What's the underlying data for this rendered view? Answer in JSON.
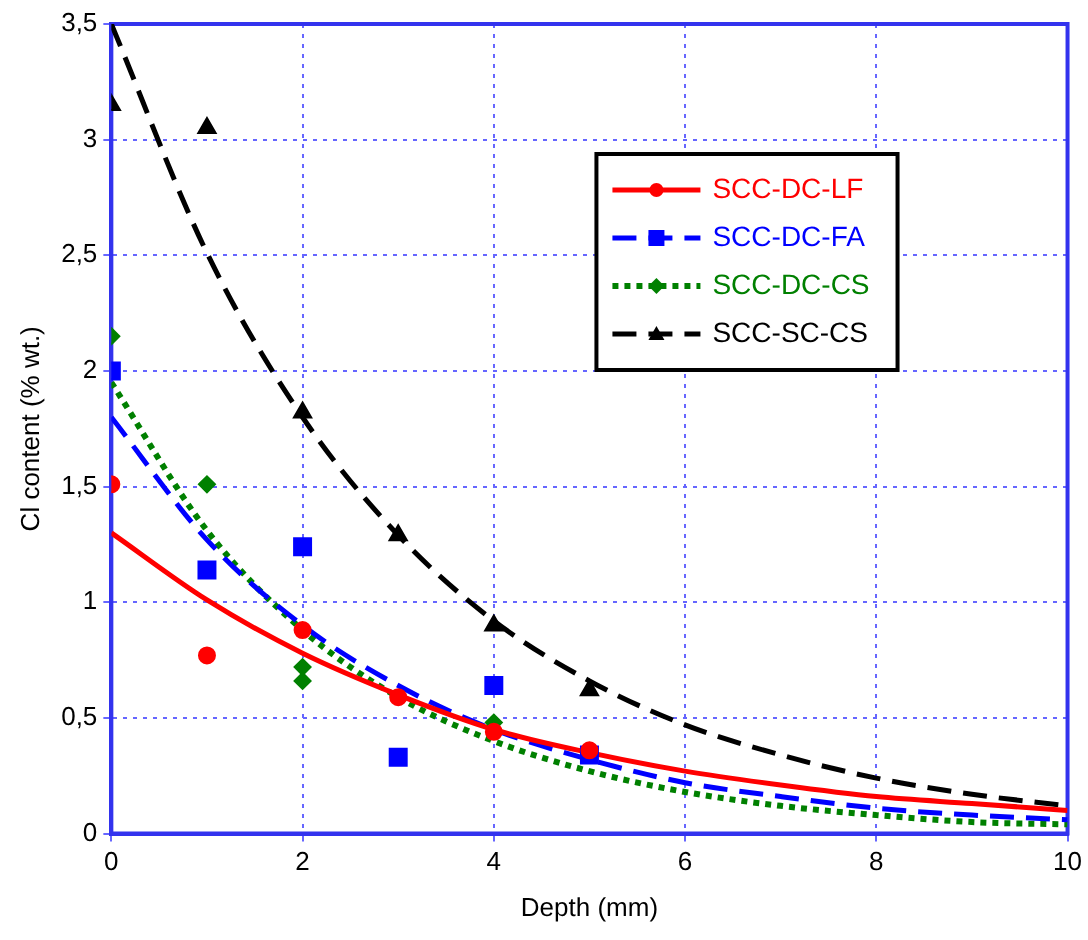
{
  "chart_data": {
    "type": "scatter",
    "xlabel": "Depth (mm)",
    "ylabel": "Cl content (% wt.)",
    "xlim": [
      0,
      10
    ],
    "xticks": [
      0,
      2,
      4,
      6,
      8,
      10
    ],
    "ylim": [
      0,
      3.5
    ],
    "yticks": [
      0,
      {
        "value": 0.5,
        "label": "0,5"
      },
      1,
      {
        "value": 1.5,
        "label": "1,5"
      },
      2,
      {
        "value": 2.5,
        "label": "2,5"
      },
      3,
      {
        "value": 3.5,
        "label": "3,5"
      }
    ],
    "grid": true,
    "legend": "top right",
    "series": [
      {
        "name": "SCC-DC-LF",
        "marker": "circle",
        "color": "#ff0000",
        "x": [
          0,
          1,
          2,
          3,
          4,
          5
        ],
        "values": [
          1.51,
          0.77,
          0.88,
          0.59,
          0.44,
          0.36
        ],
        "line_style": "solid"
      },
      {
        "name": "SCC-DC-FA",
        "marker": "square",
        "color": "#0000ff",
        "x": [
          0,
          1,
          2,
          3,
          4,
          5
        ],
        "values": [
          2.0,
          1.14,
          1.24,
          0.33,
          0.64,
          0.34
        ],
        "line_style": "dashed"
      },
      {
        "name": "SCC-DC-CS",
        "marker": "diamond",
        "color": "#008000",
        "x": [
          0,
          1,
          2,
          2,
          4
        ],
        "values": [
          2.15,
          1.51,
          0.72,
          0.66,
          0.48
        ],
        "line_style": "dotted"
      },
      {
        "name": "SCC-SC-CS",
        "marker": "triangle",
        "color": "#000000",
        "x": [
          0,
          1,
          2,
          3,
          4,
          5
        ],
        "values": [
          3.15,
          3.05,
          1.82,
          1.29,
          0.9,
          0.62
        ],
        "line_style": "dashed"
      },
      {
        "type": "line",
        "color": "#ff0000",
        "line_style": "solid",
        "x": [
          0,
          1,
          2,
          3,
          4,
          5,
          6,
          7,
          8,
          9,
          10
        ],
        "values": [
          1.3,
          1.01,
          0.78,
          0.6,
          0.45,
          0.35,
          0.27,
          0.21,
          0.16,
          0.13,
          0.1
        ]
      },
      {
        "type": "line",
        "color": "#0000ff",
        "line_style": "dashed",
        "x": [
          0,
          1,
          2,
          3,
          4,
          5,
          6,
          7,
          8,
          9,
          10
        ],
        "values": [
          1.8,
          1.27,
          0.9,
          0.64,
          0.45,
          0.32,
          0.22,
          0.16,
          0.11,
          0.08,
          0.06
        ]
      },
      {
        "type": "line",
        "color": "#008000",
        "line_style": "dotted",
        "x": [
          0,
          1,
          2,
          3,
          4,
          5,
          6,
          7,
          8,
          9,
          10
        ],
        "values": [
          1.95,
          1.31,
          0.88,
          0.59,
          0.4,
          0.27,
          0.18,
          0.12,
          0.08,
          0.05,
          0.04
        ]
      },
      {
        "type": "line",
        "color": "#000000",
        "line_style": "dashed",
        "x": [
          0,
          1,
          2,
          3,
          4,
          5,
          6,
          7,
          8,
          9,
          10
        ],
        "values": [
          3.5,
          2.51,
          1.8,
          1.29,
          0.92,
          0.66,
          0.47,
          0.34,
          0.24,
          0.17,
          0.12
        ]
      }
    ]
  }
}
